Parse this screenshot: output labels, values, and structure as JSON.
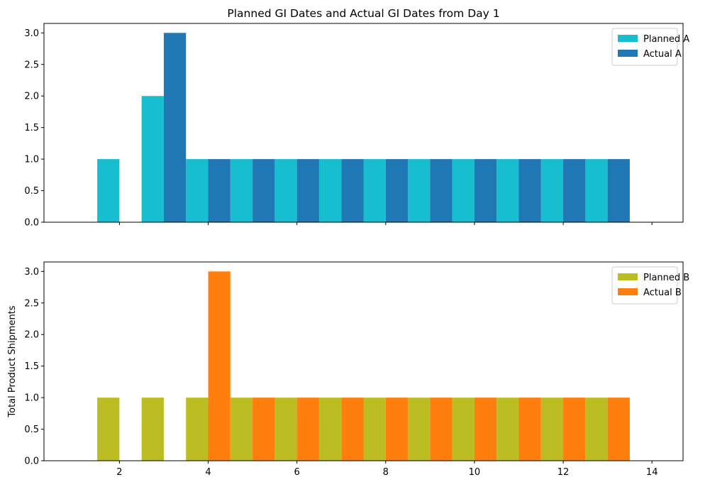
{
  "chart_data": [
    {
      "type": "bar",
      "title": "Planned GI Dates and Actual GI Dates from Day 1",
      "xlabel": "",
      "ylabel": "",
      "xlim": [
        0.3,
        14.7
      ],
      "ylim": [
        0,
        3.15
      ],
      "yticks": [
        0.0,
        0.5,
        1.0,
        1.5,
        2.0,
        2.5,
        3.0
      ],
      "ytick_labels": [
        "0.0",
        "0.5",
        "1.0",
        "1.5",
        "2.0",
        "2.5",
        "3.0"
      ],
      "xticks": [
        2,
        4,
        6,
        8,
        10,
        12,
        14
      ],
      "xtick_labels_visible": false,
      "bar_width": 0.5,
      "legend_position": "top-right",
      "grid": false,
      "series": [
        {
          "name": "Planned A",
          "color": "#17becf",
          "x": [
            1.75,
            2.75,
            3.75,
            4.75,
            5.75,
            6.75,
            7.75,
            8.75,
            9.75,
            10.75,
            11.75,
            12.75
          ],
          "values": [
            1,
            2,
            1,
            1,
            1,
            1,
            1,
            1,
            1,
            1,
            1,
            1
          ]
        },
        {
          "name": "Actual A",
          "color": "#1f77b4",
          "x": [
            3.25,
            4.25,
            5.25,
            6.25,
            7.25,
            8.25,
            9.25,
            10.25,
            11.25,
            12.25,
            13.25
          ],
          "values": [
            3,
            1,
            1,
            1,
            1,
            1,
            1,
            1,
            1,
            1,
            1
          ]
        }
      ]
    },
    {
      "type": "bar",
      "title": "",
      "xlabel": "",
      "ylabel": "Total Product Shipments",
      "xlim": [
        0.3,
        14.7
      ],
      "ylim": [
        0,
        3.15
      ],
      "yticks": [
        0.0,
        0.5,
        1.0,
        1.5,
        2.0,
        2.5,
        3.0
      ],
      "ytick_labels": [
        "0.0",
        "0.5",
        "1.0",
        "1.5",
        "2.0",
        "2.5",
        "3.0"
      ],
      "xticks": [
        2,
        4,
        6,
        8,
        10,
        12,
        14
      ],
      "xtick_labels": [
        "2",
        "4",
        "6",
        "8",
        "10",
        "12",
        "14"
      ],
      "xtick_labels_visible": true,
      "bar_width": 0.5,
      "legend_position": "top-right",
      "grid": false,
      "series": [
        {
          "name": "Planned B",
          "color": "#bcbd22",
          "x": [
            1.75,
            2.75,
            3.75,
            4.75,
            5.75,
            6.75,
            7.75,
            8.75,
            9.75,
            10.75,
            11.75,
            12.75
          ],
          "values": [
            1,
            1,
            1,
            1,
            1,
            1,
            1,
            1,
            1,
            1,
            1,
            1
          ]
        },
        {
          "name": "Actual B",
          "color": "#ff7f0e",
          "x": [
            4.25,
            5.25,
            6.25,
            7.25,
            8.25,
            9.25,
            10.25,
            11.25,
            12.25,
            13.25
          ],
          "values": [
            3,
            1,
            1,
            1,
            1,
            1,
            1,
            1,
            1,
            1
          ]
        }
      ]
    }
  ]
}
